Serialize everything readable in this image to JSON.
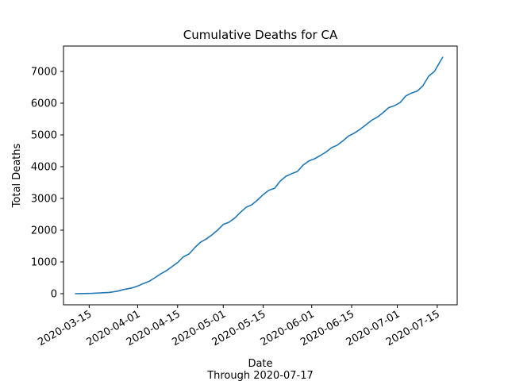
{
  "chart_data": {
    "type": "line",
    "title": "Cumulative Deaths for CA",
    "xlabel": "Date",
    "xlabel_sub": "Through 2020-07-17",
    "ylabel": "Total Deaths",
    "ylim": [
      -350,
      7800
    ],
    "xlim": [
      "2020-03-06",
      "2020-07-22"
    ],
    "grid": false,
    "line_color": "#1f77b4",
    "yticks": [
      0,
      1000,
      2000,
      3000,
      4000,
      5000,
      6000,
      7000
    ],
    "xticks": [
      "2020-03-15",
      "2020-04-01",
      "2020-04-15",
      "2020-05-01",
      "2020-05-15",
      "2020-06-01",
      "2020-06-15",
      "2020-07-01",
      "2020-07-15"
    ],
    "series": [
      {
        "x": [
          "2020-03-10",
          "2020-03-13",
          "2020-03-16",
          "2020-03-19",
          "2020-03-22",
          "2020-03-25",
          "2020-03-27",
          "2020-03-30",
          "2020-04-01",
          "2020-04-03",
          "2020-04-05",
          "2020-04-07",
          "2020-04-09",
          "2020-04-11",
          "2020-04-13",
          "2020-04-15",
          "2020-04-17",
          "2020-04-19",
          "2020-04-21",
          "2020-04-23",
          "2020-04-25",
          "2020-04-27",
          "2020-04-29",
          "2020-05-01",
          "2020-05-03",
          "2020-05-05",
          "2020-05-07",
          "2020-05-09",
          "2020-05-11",
          "2020-05-13",
          "2020-05-15",
          "2020-05-17",
          "2020-05-19",
          "2020-05-21",
          "2020-05-23",
          "2020-05-25",
          "2020-05-27",
          "2020-05-29",
          "2020-05-31",
          "2020-06-02",
          "2020-06-04",
          "2020-06-06",
          "2020-06-08",
          "2020-06-10",
          "2020-06-12",
          "2020-06-14",
          "2020-06-16",
          "2020-06-18",
          "2020-06-20",
          "2020-06-22",
          "2020-06-24",
          "2020-06-26",
          "2020-06-28",
          "2020-06-30",
          "2020-07-02",
          "2020-07-04",
          "2020-07-06",
          "2020-07-08",
          "2020-07-10",
          "2020-07-12",
          "2020-07-14",
          "2020-07-17"
        ],
        "y": [
          0,
          5,
          10,
          25,
          40,
          80,
          130,
          180,
          240,
          320,
          390,
          500,
          620,
          720,
          850,
          980,
          1160,
          1250,
          1450,
          1620,
          1720,
          1850,
          2000,
          2180,
          2250,
          2380,
          2560,
          2720,
          2800,
          2950,
          3120,
          3260,
          3320,
          3550,
          3700,
          3780,
          3850,
          4050,
          4180,
          4250,
          4350,
          4460,
          4600,
          4680,
          4820,
          4970,
          5060,
          5180,
          5320,
          5460,
          5560,
          5700,
          5860,
          5920,
          6020,
          6230,
          6320,
          6380,
          6550,
          6850,
          7000,
          7460
        ]
      }
    ]
  }
}
